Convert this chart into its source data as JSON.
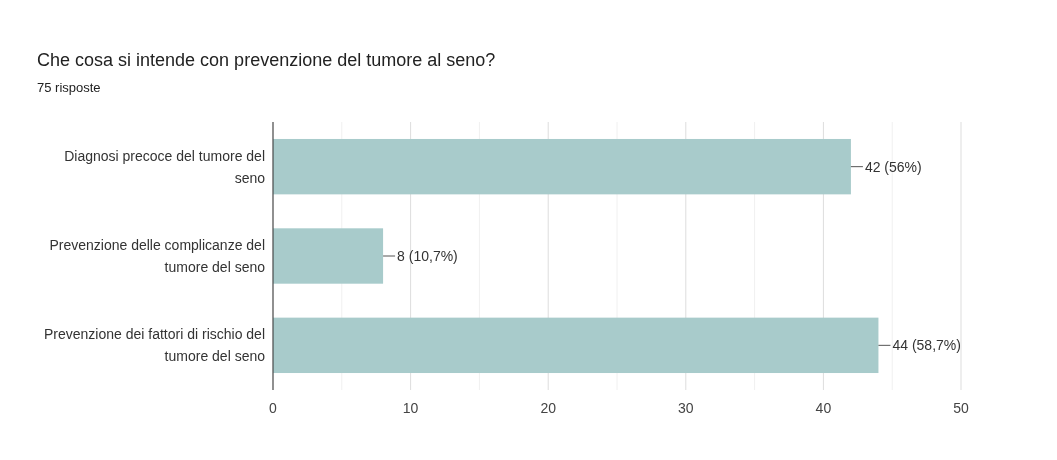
{
  "chart_data": {
    "type": "bar",
    "orientation": "horizontal",
    "title": "Che cosa si intende con prevenzione del tumore al seno?",
    "subtitle": "75 risposte",
    "categories": [
      "Diagnosi precoce del tumore del seno",
      "Prevenzione delle complicanze del tumore del seno",
      "Prevenzione dei fattori di rischio del tumore del seno"
    ],
    "values": [
      42,
      8,
      44
    ],
    "value_labels": [
      "42 (56%)",
      "8 (10,7%)",
      "44 (58,7%)"
    ],
    "color": "#a8cbcb",
    "xlim": [
      0,
      50
    ],
    "xticks": [
      0,
      {
        "value": 5,
        "label": null
      },
      10,
      {
        "value": 15,
        "label": null
      },
      20,
      {
        "value": 25,
        "label": null
      },
      30,
      {
        "value": 35,
        "label": null
      },
      40,
      {
        "value": 45,
        "label": null
      },
      50
    ],
    "grid": "x"
  }
}
